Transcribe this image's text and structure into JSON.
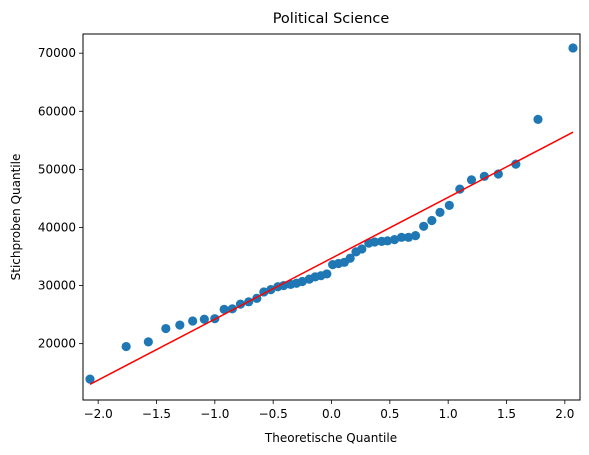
{
  "chart_data": {
    "type": "scatter",
    "title": "Political Science",
    "xlabel": "Theoretische Quantile",
    "ylabel": "Stichproben Quantile",
    "xlim": [
      -2.13,
      2.13
    ],
    "ylim": [
      10300,
      73300
    ],
    "xticks": [
      -2.0,
      -1.5,
      -1.0,
      -0.5,
      0.0,
      0.5,
      1.0,
      1.5,
      2.0
    ],
    "xtick_labels": [
      "−2.0",
      "−1.5",
      "−1.0",
      "−0.5",
      "0.0",
      "0.5",
      "1.0",
      "1.5",
      "2.0"
    ],
    "yticks": [
      20000,
      30000,
      40000,
      50000,
      60000,
      70000
    ],
    "ytick_labels": [
      "20000",
      "30000",
      "40000",
      "50000",
      "60000",
      "70000"
    ],
    "grid": false,
    "colors": {
      "points": "#1f77b4",
      "line": "#ff0000"
    },
    "points": [
      [
        -2.07,
        13900
      ],
      [
        -1.76,
        19500
      ],
      [
        -1.57,
        20300
      ],
      [
        -1.42,
        22600
      ],
      [
        -1.3,
        23200
      ],
      [
        -1.19,
        23900
      ],
      [
        -1.09,
        24200
      ],
      [
        -1.0,
        24300
      ],
      [
        -0.92,
        25900
      ],
      [
        -0.85,
        26000
      ],
      [
        -0.78,
        26800
      ],
      [
        -0.71,
        27200
      ],
      [
        -0.64,
        27800
      ],
      [
        -0.58,
        28900
      ],
      [
        -0.52,
        29300
      ],
      [
        -0.46,
        29800
      ],
      [
        -0.41,
        30000
      ],
      [
        -0.35,
        30200
      ],
      [
        -0.3,
        30400
      ],
      [
        -0.25,
        30700
      ],
      [
        -0.19,
        31100
      ],
      [
        -0.14,
        31500
      ],
      [
        -0.09,
        31700
      ],
      [
        -0.04,
        32000
      ],
      [
        0.01,
        33600
      ],
      [
        0.06,
        33800
      ],
      [
        0.11,
        34000
      ],
      [
        0.16,
        34700
      ],
      [
        0.21,
        35800
      ],
      [
        0.26,
        36300
      ],
      [
        0.32,
        37300
      ],
      [
        0.37,
        37500
      ],
      [
        0.43,
        37600
      ],
      [
        0.48,
        37700
      ],
      [
        0.54,
        37900
      ],
      [
        0.6,
        38300
      ],
      [
        0.66,
        38300
      ],
      [
        0.72,
        38600
      ],
      [
        0.79,
        40200
      ],
      [
        0.86,
        41200
      ],
      [
        0.93,
        42600
      ],
      [
        1.01,
        43800
      ],
      [
        1.1,
        46600
      ],
      [
        1.2,
        48200
      ],
      [
        1.31,
        48800
      ],
      [
        1.43,
        49200
      ],
      [
        1.58,
        50900
      ],
      [
        1.77,
        58600
      ],
      [
        2.07,
        70900
      ]
    ],
    "fit_line": {
      "x": [
        -2.07,
        2.07
      ],
      "y": [
        13000,
        56400
      ]
    }
  }
}
